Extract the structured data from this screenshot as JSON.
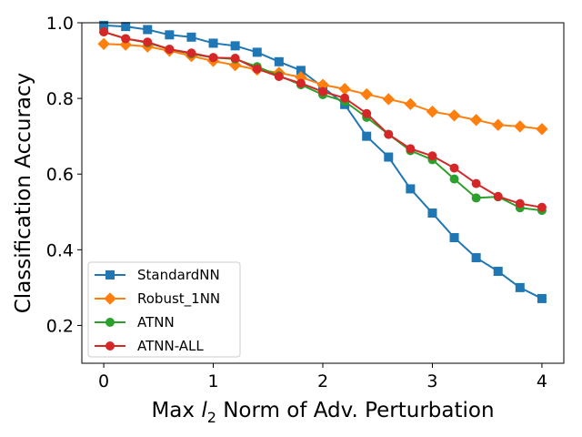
{
  "chart_data": {
    "type": "line",
    "xlabel_prefix": "Max ",
    "xlabel_var": "l",
    "xlabel_sub": "2",
    "xlabel_suffix": " Norm of Adv. Perturbation",
    "ylabel": "Classification Accuracy",
    "xlim": [
      -0.2,
      4.2
    ],
    "ylim": [
      0.1,
      1.0
    ],
    "xticks": [
      0,
      1,
      2,
      3,
      4
    ],
    "xtick_labels": [
      "0",
      "1",
      "2",
      "3",
      "4"
    ],
    "yticks": [
      0.2,
      0.4,
      0.6,
      0.8,
      1.0
    ],
    "ytick_labels": [
      "0.2",
      "0.4",
      "0.6",
      "0.8",
      "1.0"
    ],
    "grid": false,
    "legend_position": "lower-left",
    "x": [
      0,
      0.2,
      0.4,
      0.6,
      0.8,
      1.0,
      1.2,
      1.4,
      1.6,
      1.8,
      2.0,
      2.2,
      2.4,
      2.6,
      2.8,
      3.0,
      3.2,
      3.4,
      3.6,
      3.8,
      4.0
    ],
    "series": [
      {
        "name": "StandardNN",
        "color": "#1f77b4",
        "marker": "square",
        "values": [
          0.993,
          0.99,
          0.982,
          0.968,
          0.962,
          0.946,
          0.939,
          0.922,
          0.897,
          0.874,
          0.83,
          0.784,
          0.7,
          0.645,
          0.561,
          0.497,
          0.432,
          0.379,
          0.343,
          0.3,
          0.271
        ]
      },
      {
        "name": "Robust_1NN",
        "color": "#ff7f0e",
        "marker": "diamond",
        "values": [
          0.944,
          0.942,
          0.937,
          0.926,
          0.912,
          0.899,
          0.888,
          0.876,
          0.868,
          0.856,
          0.836,
          0.825,
          0.811,
          0.798,
          0.785,
          0.765,
          0.755,
          0.743,
          0.73,
          0.726,
          0.719
        ]
      },
      {
        "name": "ATNN",
        "color": "#2ca02c",
        "marker": "circle",
        "values": [
          0.976,
          0.958,
          0.947,
          0.93,
          0.918,
          0.908,
          0.904,
          0.884,
          0.86,
          0.836,
          0.81,
          0.792,
          0.75,
          0.705,
          0.662,
          0.638,
          0.587,
          0.537,
          0.54,
          0.511,
          0.504
        ]
      },
      {
        "name": "ATNN-ALL",
        "color": "#d62728",
        "marker": "circle",
        "values": [
          0.976,
          0.958,
          0.949,
          0.93,
          0.92,
          0.908,
          0.906,
          0.878,
          0.858,
          0.84,
          0.818,
          0.801,
          0.76,
          0.705,
          0.667,
          0.648,
          0.616,
          0.575,
          0.541,
          0.522,
          0.512
        ]
      }
    ]
  }
}
